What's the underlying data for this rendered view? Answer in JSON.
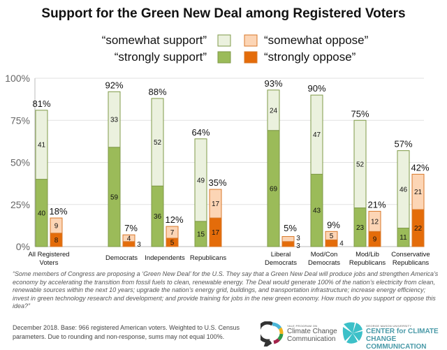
{
  "chart_data": {
    "type": "bar",
    "title": "Support for the Green New Deal among Registered Voters",
    "ylim": [
      0,
      100
    ],
    "yticks": [
      "0%",
      "25%",
      "50%",
      "75%",
      "100%"
    ],
    "grid": true,
    "legend_placement": "top",
    "legend": {
      "somewhat_support": "“somewhat support”",
      "strongly_support": "“strongly support”",
      "somewhat_oppose": "“somewhat oppose”",
      "strongly_oppose": "“strongly oppose”"
    },
    "colors": {
      "somewhat_support": "#ebf1de",
      "strongly_support": "#9bbb59",
      "somewhat_oppose": "#fcd5b5",
      "strongly_oppose": "#e46c0a",
      "support_border": "#7f9a48",
      "oppose_border": "#d8782a"
    },
    "categories": [
      {
        "label": [
          "All Registered",
          "Voters"
        ],
        "strongly_support": 40,
        "somewhat_support": 41,
        "support_total": "81%",
        "strongly_oppose": 8,
        "somewhat_oppose": 9,
        "oppose_total": "18%"
      },
      {
        "label": [
          "Democrats"
        ],
        "strongly_support": 59,
        "somewhat_support": 33,
        "support_total": "92%",
        "strongly_oppose": 3,
        "somewhat_oppose": 4,
        "oppose_total": "7%"
      },
      {
        "label": [
          "Independents"
        ],
        "strongly_support": 36,
        "somewhat_support": 52,
        "support_total": "88%",
        "strongly_oppose": 5,
        "somewhat_oppose": 7,
        "oppose_total": "12%"
      },
      {
        "label": [
          "Republicans"
        ],
        "strongly_support": 15,
        "somewhat_support": 49,
        "support_total": "64%",
        "strongly_oppose": 17,
        "somewhat_oppose": 17,
        "oppose_total": "35%"
      },
      {
        "label": [
          "Liberal",
          "Democrats"
        ],
        "strongly_support": 69,
        "somewhat_support": 24,
        "support_total": "93%",
        "strongly_oppose": 3,
        "somewhat_oppose": 3,
        "oppose_total": "5%"
      },
      {
        "label": [
          "Mod/Con",
          "Democrats"
        ],
        "strongly_support": 43,
        "somewhat_support": 47,
        "support_total": "90%",
        "strongly_oppose": 4,
        "somewhat_oppose": 5,
        "oppose_total": "9%"
      },
      {
        "label": [
          "Mod/Lib",
          "Republicans"
        ],
        "strongly_support": 23,
        "somewhat_support": 52,
        "support_total": "75%",
        "strongly_oppose": 9,
        "somewhat_oppose": 12,
        "oppose_total": "21%"
      },
      {
        "label": [
          "Conservative",
          "Republicans"
        ],
        "strongly_support": 11,
        "somewhat_support": 46,
        "support_total": "57%",
        "strongly_oppose": 22,
        "somewhat_oppose": 21,
        "oppose_total": "42%"
      }
    ]
  },
  "footer": {
    "question": "“Some members of Congress are proposing a ‘Green New Deal’ for the U.S. They say that a Green New Deal will produce jobs and strengthen America’s economy by accelerating the transition from fossil fuels to clean, renewable energy. The Deal would generate 100% of the nation’s electricity from clean, renewable sources within the next 10 years; upgrade the nation’s energy grid, buildings, and transportation infrastructure; increase energy efficiency; invest in green technology research and development; and provide training for jobs in the new green economy. How much do you support or oppose this idea?”",
    "note": "December 2018. Base: 966 registered American voters. Weighted to U.S. Census parameters. Due to rounding and non-response, sums may not equal 100%.",
    "logo_yale": {
      "small": "YALE PROGRAM ON",
      "line1": "Climate Change",
      "line2": "Communication"
    },
    "logo_gmu": {
      "small": "GEORGE MASON UNIVERSITY",
      "line1": "CENTER for CLIMATE CHANGE",
      "line2": "COMMUNICATION"
    }
  }
}
